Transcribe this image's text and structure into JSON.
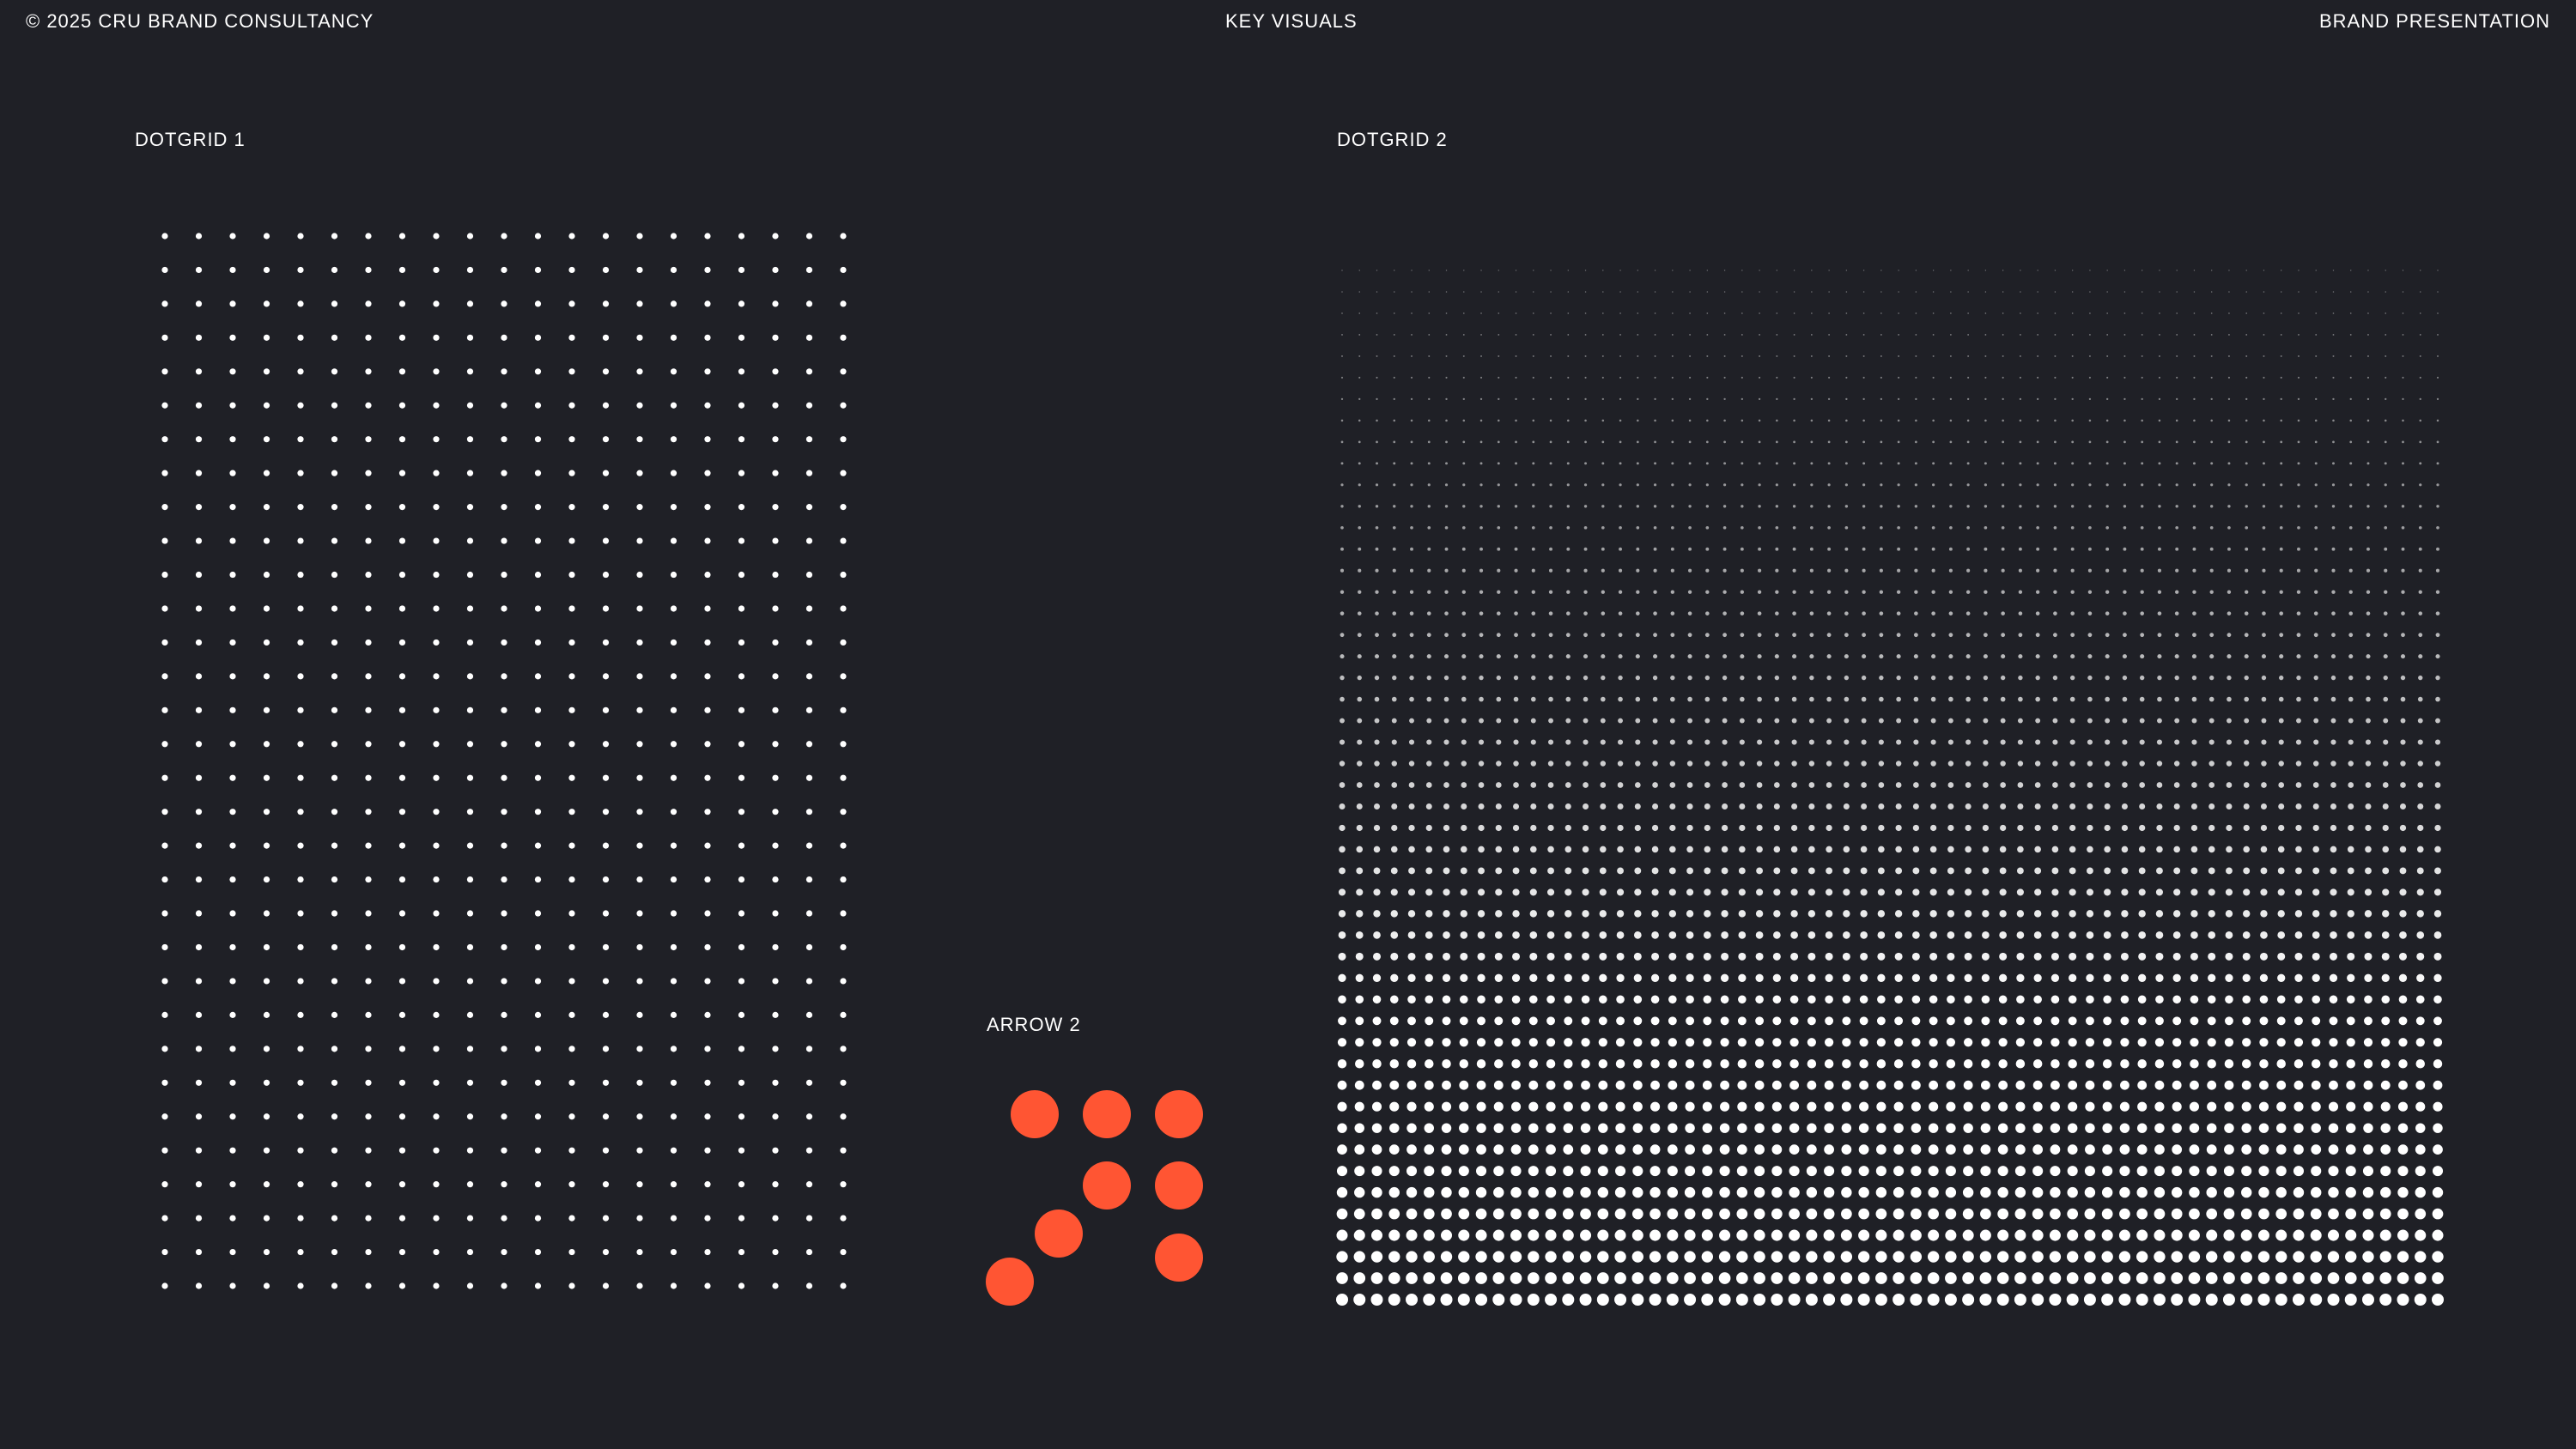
{
  "header": {
    "left": "© 2025 CRU BRAND CONSULTANCY",
    "center": "KEY VISUALS",
    "right": "BRAND PRESENTATION"
  },
  "sections": {
    "dotgrid1": {
      "label": "DOTGRID 1",
      "color": "#ffffff"
    },
    "dotgrid2": {
      "label": "DOTGRID 2",
      "color": "#ffffff"
    },
    "arrow2": {
      "label": "ARROW 2",
      "color": "#ff5533"
    }
  },
  "colors": {
    "background": "#1f2026",
    "text": "#ffffff",
    "accent": "#ff5533"
  }
}
